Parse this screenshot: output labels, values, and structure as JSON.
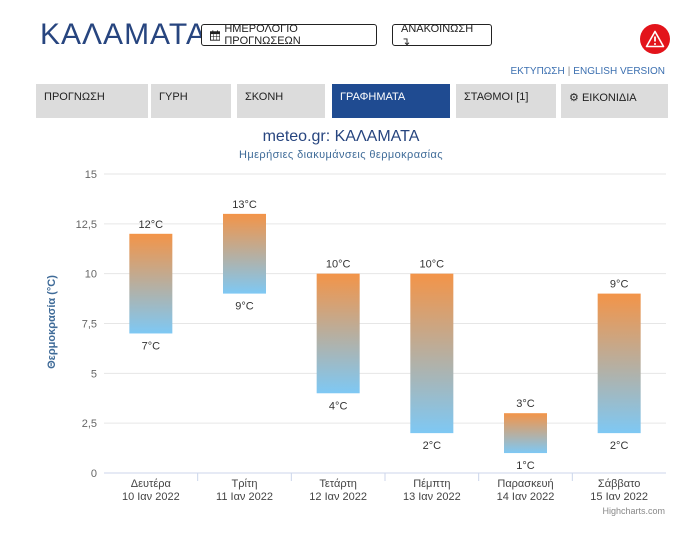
{
  "header": {
    "city": "ΚΑΛΑΜΑΤΑ",
    "calendar_label": "ΗΜΕΡΟΛΟΓΙΟ ΠΡΟΓΝΩΣΕΩΝ",
    "announce_label": "ΑΝΑΚΟΙΝΩΣΗ ↴",
    "print_link": "ΕΚΤΥΠΩΣΗ",
    "english_link": "ENGLISH VERSION",
    "separator": "|"
  },
  "tabs": [
    {
      "label": "ΠΡΟΓΝΩΣΗ",
      "active": false
    },
    {
      "label": "ΓΥΡΗ",
      "active": false
    },
    {
      "label": "ΣΚΟΝΗ",
      "active": false
    },
    {
      "label": "ΓΡΑΦΗΜΑΤΑ",
      "active": true
    },
    {
      "label": "ΣΤΑΘΜΟΙ [1]",
      "active": false
    },
    {
      "label": "ΕΙΚΟΝΙΔΙΑ",
      "active": false
    }
  ],
  "colors": {
    "brand": "#27457f",
    "active_tab": "#1f4b91",
    "warn": "#e3141b",
    "bar_top": "#f39448",
    "bar_bottom": "#7ec8f4"
  },
  "chart_data": {
    "type": "columnrange",
    "title": "meteo.gr: ΚΑΛΑΜΑΤΑ",
    "subtitle": "Ημερήσιες διακυμάνσεις θερμοκρασίας",
    "ylabel": "Θερμοκρασία (°C)",
    "ylim": [
      0,
      15
    ],
    "yticks": [
      "0",
      "2,5",
      "5",
      "7,5",
      "10",
      "12,5",
      "15"
    ],
    "categories": [
      {
        "day": "Δευτέρα",
        "date": "10 Ιαν 2022"
      },
      {
        "day": "Τρίτη",
        "date": "11 Ιαν 2022"
      },
      {
        "day": "Τετάρτη",
        "date": "12 Ιαν 2022"
      },
      {
        "day": "Πέμπτη",
        "date": "13 Ιαν 2022"
      },
      {
        "day": "Παρασκευή",
        "date": "14 Ιαν 2022"
      },
      {
        "day": "Σάββατο",
        "date": "15 Ιαν 2022"
      }
    ],
    "low": [
      7,
      9,
      4,
      2,
      1,
      2
    ],
    "high": [
      12,
      13,
      10,
      10,
      3,
      9
    ],
    "unit": "°C",
    "grid": true
  },
  "credit": "Highcharts.com"
}
